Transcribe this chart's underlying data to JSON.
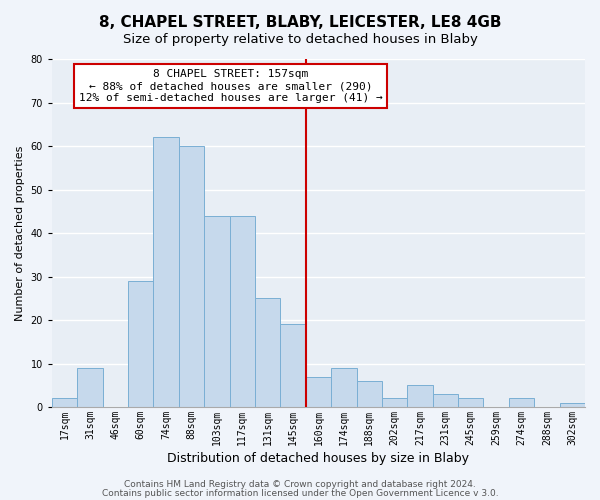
{
  "title": "8, CHAPEL STREET, BLABY, LEICESTER, LE8 4GB",
  "subtitle": "Size of property relative to detached houses in Blaby",
  "xlabel": "Distribution of detached houses by size in Blaby",
  "ylabel": "Number of detached properties",
  "categories": [
    "17sqm",
    "31sqm",
    "46sqm",
    "60sqm",
    "74sqm",
    "88sqm",
    "103sqm",
    "117sqm",
    "131sqm",
    "145sqm",
    "160sqm",
    "174sqm",
    "188sqm",
    "202sqm",
    "217sqm",
    "231sqm",
    "245sqm",
    "259sqm",
    "274sqm",
    "288sqm",
    "302sqm"
  ],
  "values": [
    2,
    9,
    0,
    29,
    62,
    60,
    44,
    44,
    25,
    19,
    7,
    9,
    6,
    2,
    5,
    3,
    2,
    0,
    2,
    0,
    1
  ],
  "bar_color": "#c6d9ec",
  "bar_edge_color": "#7aafd4",
  "ylim": [
    0,
    80
  ],
  "yticks": [
    0,
    10,
    20,
    30,
    40,
    50,
    60,
    70,
    80
  ],
  "vline_idx": 10,
  "vline_color": "#cc0000",
  "annotation_title": "8 CHAPEL STREET: 157sqm",
  "annotation_line1": "← 88% of detached houses are smaller (290)",
  "annotation_line2": "12% of semi-detached houses are larger (41) →",
  "footer1": "Contains HM Land Registry data © Crown copyright and database right 2024.",
  "footer2": "Contains public sector information licensed under the Open Government Licence v 3.0.",
  "fig_bg": "#f0f4fa",
  "plot_bg": "#e8eef5",
  "grid_color": "#ffffff",
  "title_fontsize": 11,
  "subtitle_fontsize": 9.5,
  "xlabel_fontsize": 9,
  "ylabel_fontsize": 8,
  "tick_fontsize": 7,
  "footer_fontsize": 6.5,
  "ann_fontsize": 8
}
